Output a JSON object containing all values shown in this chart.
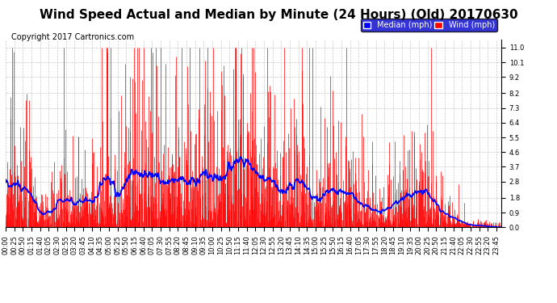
{
  "title": "Wind Speed Actual and Median by Minute (24 Hours) (Old) 20170630",
  "copyright": "Copyright 2017 Cartronics.com",
  "yticks": [
    0.0,
    0.9,
    1.8,
    2.8,
    3.7,
    4.6,
    5.5,
    6.4,
    7.3,
    8.2,
    9.2,
    10.1,
    11.0
  ],
  "ymin": 0.0,
  "ymax": 11.5,
  "legend_median_color": "#0000ff",
  "legend_wind_color": "#ff0000",
  "bar_color": "#ff0000",
  "line_color": "#0000ff",
  "background_color": "#ffffff",
  "grid_color": "#bbbbbb",
  "title_fontsize": 11,
  "copyright_fontsize": 7,
  "tick_fontsize": 6,
  "tick_interval": 25
}
